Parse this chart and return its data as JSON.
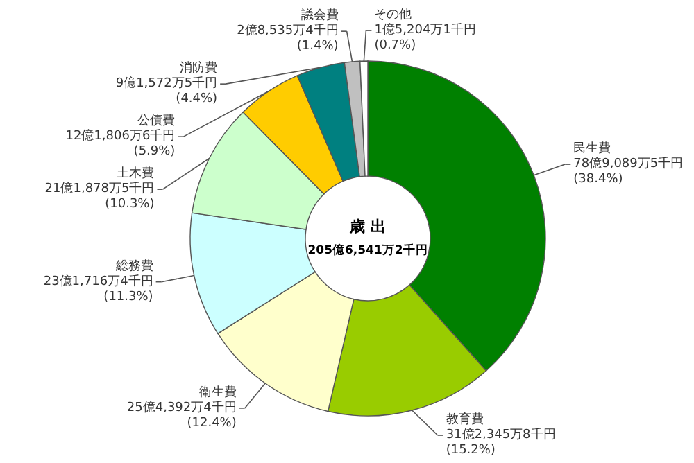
{
  "chart_data": {
    "type": "donut",
    "title": "歳 出",
    "subtitle": "205億6,541万2千円",
    "categories": [
      "民生費",
      "教育費",
      "衛生費",
      "総務費",
      "土木費",
      "公債費",
      "消防費",
      "議会費",
      "その他"
    ],
    "values": [
      38.4,
      15.2,
      12.4,
      11.3,
      10.3,
      5.9,
      4.4,
      1.4,
      0.7
    ],
    "colors": [
      "#008000",
      "#99cc00",
      "#ffffcc",
      "#ccffff",
      "#ccffcc",
      "#ffcc00",
      "#008080",
      "#c0c0c0",
      "#ffffff"
    ],
    "value_labels": [
      "(38.4%)",
      "(15.2%)",
      "(12.4%)",
      "(11.3%)",
      "(10.3%)",
      "(5.9%)",
      "(4.4%)",
      "(1.4%)",
      "(0.7%)"
    ],
    "annotations": [
      "78億9,089万5千円",
      "31億2,345万8千円",
      "25億4,392万4千円",
      "23億1,716万4千円",
      "21億1,878万5千円",
      "12億1,806万6千円",
      "9億1,572万5千円",
      "2億8,535万4千円",
      "1億5,204万1千円"
    ]
  }
}
